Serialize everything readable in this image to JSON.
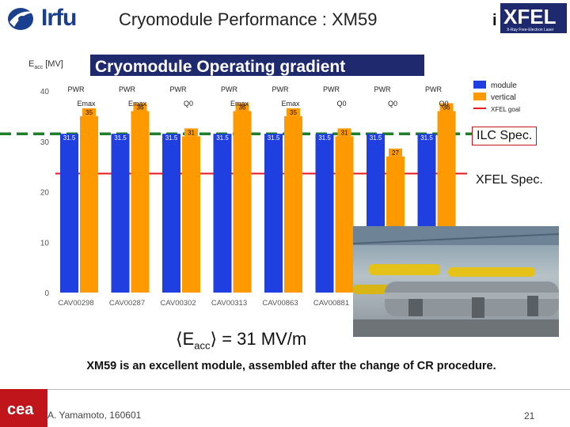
{
  "header": {
    "logo_left_text": "Irfu",
    "title": "Cryomodule Performance : XM59",
    "logo_right_text": "XFEL",
    "logo_right_prefix": "i",
    "logo_right_subtitle": "X-Ray Free-Electron Laser"
  },
  "chart_data": {
    "type": "bar",
    "title": "Cryomodule Operating gradient",
    "ylabel": "E",
    "ylabel_sub": "acc",
    "ylabel_unit": "[MV]",
    "ylim": [
      0,
      40
    ],
    "yticks": [
      0,
      10,
      20,
      30,
      40
    ],
    "categories": [
      "CAV00298",
      "CAV00287",
      "CAV00302",
      "CAV00313",
      "CAV00863",
      "CAV00881",
      "",
      ""
    ],
    "series": [
      {
        "name": "module",
        "color": "#1f3fe0",
        "values": [
          31.5,
          31.5,
          31.5,
          31.5,
          31.5,
          31.5,
          31.5,
          31.5
        ],
        "labels": [
          "31.5",
          "31.5",
          "31.5",
          "31.5",
          "31.5",
          "31.5",
          "31.5",
          "31.5"
        ]
      },
      {
        "name": "vertical",
        "color": "#ff9900",
        "values": [
          35,
          36,
          31,
          36,
          35,
          31,
          27,
          36
        ],
        "labels": [
          "35",
          "36",
          "31",
          "36",
          "35",
          "31",
          "27",
          "36"
        ]
      }
    ],
    "limit_labels_top": [
      "PWR",
      "PWR",
      "PWR",
      "PWR",
      "PWR",
      "PWR",
      "PWR",
      "PWR"
    ],
    "limit_labels_vertical": [
      "Emax",
      "Emax",
      "Q0",
      "Emax",
      "Emax",
      "Q0",
      "Q0",
      "Q0"
    ],
    "reference_lines": [
      {
        "name": "XFEL goal",
        "value": 23.6,
        "color": "#e8161a"
      },
      {
        "name": "ILC Spec.",
        "value": 31.5,
        "color": "#1d7f28"
      }
    ],
    "legend": {
      "position": "right",
      "items": [
        "module",
        "vertical",
        "XFEL goal"
      ]
    },
    "grid": false
  },
  "annotations": {
    "ilc_spec": "ILC Spec.",
    "xfel_spec": "XFEL Spec."
  },
  "mean": {
    "symbol_left": "⟨E",
    "sub": "acc",
    "symbol_right": "⟩ = 31 MV/m"
  },
  "conclusion": "XM59 is an excellent module, assembled after the change of CR procedure.",
  "footer": {
    "author": "A. Yamamoto, 160601",
    "page": "21",
    "logo_text": "cea"
  }
}
